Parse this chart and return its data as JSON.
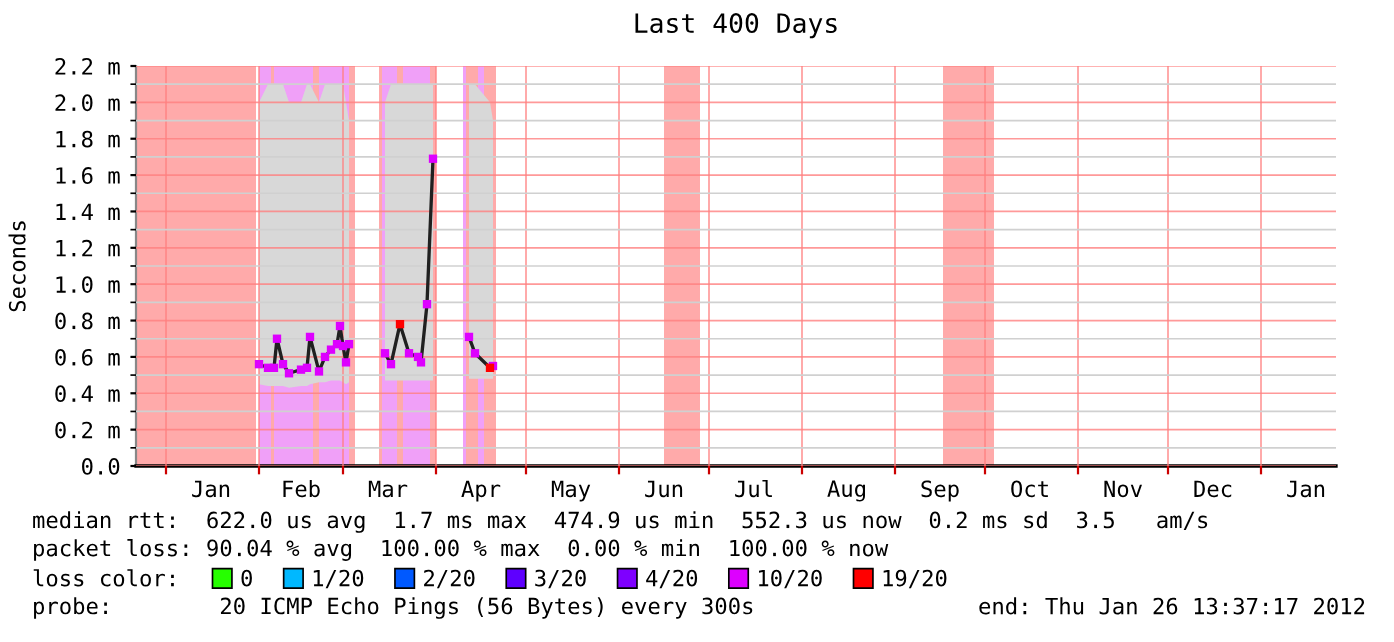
{
  "chart_data": {
    "type": "line",
    "title": "Last 400 Days",
    "ylabel": "Seconds",
    "legend_title": "loss color:",
    "legend": "bottom",
    "grid": true,
    "xlim": [
      "2010-12-22",
      "2012-01-26"
    ],
    "xticks": [
      {
        "value": "2011-01-01",
        "label": null
      },
      {
        "value": "2011-01-16",
        "label": "Jan"
      },
      {
        "value": "2011-02-01",
        "label": null
      },
      {
        "value": "2011-02-15",
        "label": "Feb"
      },
      {
        "value": "2011-03-01",
        "label": null
      },
      {
        "value": "2011-03-16",
        "label": "Mar"
      },
      {
        "value": "2011-04-01",
        "label": null
      },
      {
        "value": "2011-04-16",
        "label": "Apr"
      },
      {
        "value": "2011-05-01",
        "label": null
      },
      {
        "value": "2011-05-16",
        "label": "May"
      },
      {
        "value": "2011-06-01",
        "label": null
      },
      {
        "value": "2011-06-16",
        "label": "Jun"
      },
      {
        "value": "2011-07-01",
        "label": null
      },
      {
        "value": "2011-07-16",
        "label": "Jul"
      },
      {
        "value": "2011-08-01",
        "label": null
      },
      {
        "value": "2011-08-16",
        "label": "Aug"
      },
      {
        "value": "2011-09-01",
        "label": null
      },
      {
        "value": "2011-09-16",
        "label": "Sep"
      },
      {
        "value": "2011-10-01",
        "label": null
      },
      {
        "value": "2011-10-16",
        "label": "Oct"
      },
      {
        "value": "2011-11-01",
        "label": null
      },
      {
        "value": "2011-11-16",
        "label": "Nov"
      },
      {
        "value": "2011-12-01",
        "label": null
      },
      {
        "value": "2011-12-16",
        "label": "Dec"
      },
      {
        "value": "2012-01-01",
        "label": null
      },
      {
        "value": "2012-01-16",
        "label": "Jan"
      }
    ],
    "ylim": [
      0,
      2.2
    ],
    "yticks": [
      {
        "value": 0,
        "label": "0.0"
      },
      {
        "value": 0.1,
        "label": null
      },
      {
        "value": 0.2,
        "label": "0.2 m"
      },
      {
        "value": 0.3,
        "label": null
      },
      {
        "value": 0.4,
        "label": "0.4 m"
      },
      {
        "value": 0.5,
        "label": null
      },
      {
        "value": 0.6,
        "label": "0.6 m"
      },
      {
        "value": 0.7,
        "label": null
      },
      {
        "value": 0.8,
        "label": "0.8 m"
      },
      {
        "value": 0.9,
        "label": null
      },
      {
        "value": 1.0,
        "label": "1.0 m"
      },
      {
        "value": 1.1,
        "label": null
      },
      {
        "value": 1.2,
        "label": "1.2 m"
      },
      {
        "value": 1.3,
        "label": null
      },
      {
        "value": 1.4,
        "label": "1.4 m"
      },
      {
        "value": 1.5,
        "label": null
      },
      {
        "value": 1.6,
        "label": "1.6 m"
      },
      {
        "value": 1.7,
        "label": null
      },
      {
        "value": 1.8,
        "label": "1.8 m"
      },
      {
        "value": 1.9,
        "label": null
      },
      {
        "value": 2.0,
        "label": "2.0 m"
      },
      {
        "value": 2.1,
        "label": null
      },
      {
        "value": 2.2,
        "label": "2.2 m"
      }
    ],
    "x": [
      "2011-02-01",
      "2011-02-04",
      "2011-02-06",
      "2011-02-07",
      "2011-02-09",
      "2011-02-11",
      "2011-02-15",
      "2011-02-17",
      "2011-02-18",
      "2011-02-21",
      "2011-02-23",
      "2011-02-25",
      "2011-02-27",
      "2011-02-28",
      "2011-03-01",
      "2011-03-02",
      "2011-03-03",
      "2011-03-10",
      "2011-03-15",
      "2011-03-17",
      "2011-03-20",
      "2011-03-23",
      "2011-03-26",
      "2011-03-27",
      "2011-03-29",
      "2011-03-31",
      "2011-04-05",
      "2011-04-12",
      "2011-04-14",
      "2011-04-19",
      "2011-04-20"
    ],
    "series": [
      {
        "color": "#202020",
        "values": [
          0.56,
          0.54,
          0.54,
          0.7,
          0.56,
          0.51,
          0.53,
          0.54,
          0.71,
          0.52,
          0.6,
          0.64,
          0.67,
          0.77,
          0.66,
          0.57,
          0.67,
          null,
          0.62,
          0.56,
          0.78,
          0.62,
          0.6,
          0.57,
          0.89,
          1.69,
          null,
          0.71,
          0.62,
          0.54,
          0.55
        ],
        "lower": [
          0.45,
          0.44,
          0.44,
          0.44,
          0.44,
          0.43,
          0.44,
          0.44,
          0.45,
          0.46,
          0.46,
          0.47,
          0.47,
          0.47,
          0.46,
          0.45,
          0.46,
          null,
          0.47,
          0.47,
          0.47,
          0.47,
          0.47,
          0.47,
          0.47,
          0.47,
          null,
          0.48,
          0.48,
          0.48,
          0.48
        ],
        "upper": [
          2.0,
          2.1,
          2.1,
          2.1,
          2.1,
          2.0,
          2.0,
          2.1,
          2.1,
          2.0,
          2.1,
          2.1,
          2.1,
          2.1,
          2.1,
          2.0,
          1.9,
          null,
          2.0,
          2.1,
          2.1,
          2.1,
          2.1,
          2.1,
          2.1,
          2.1,
          null,
          2.1,
          2.1,
          2.0,
          1.9
        ]
      },
      {
        "type": "scatter",
        "marker": "square",
        "name": "0",
        "color": "#26ff00",
        "values": [
          null,
          null,
          null,
          null,
          null,
          null,
          null,
          null,
          null,
          null,
          null,
          null,
          null,
          null,
          null,
          null,
          null,
          null,
          null,
          null,
          null,
          null,
          null,
          null,
          null,
          null,
          null,
          null,
          null,
          null,
          null
        ]
      },
      {
        "type": "scatter",
        "marker": "square",
        "name": "1/20",
        "color": "#00b8ff",
        "values": [
          null,
          null,
          null,
          null,
          null,
          null,
          null,
          null,
          null,
          null,
          null,
          null,
          null,
          null,
          null,
          null,
          null,
          null,
          null,
          null,
          null,
          null,
          null,
          null,
          null,
          null,
          null,
          null,
          null,
          null,
          null
        ]
      },
      {
        "type": "scatter",
        "marker": "square",
        "name": "2/20",
        "color": "#0059ff",
        "values": [
          null,
          null,
          null,
          null,
          null,
          null,
          null,
          null,
          null,
          null,
          null,
          null,
          null,
          null,
          null,
          null,
          null,
          null,
          null,
          null,
          null,
          null,
          null,
          null,
          null,
          null,
          null,
          null,
          null,
          null,
          null
        ]
      },
      {
        "type": "scatter",
        "marker": "square",
        "name": "3/20",
        "color": "#5e00ff",
        "values": [
          null,
          null,
          null,
          null,
          null,
          null,
          null,
          null,
          null,
          null,
          null,
          null,
          null,
          null,
          null,
          null,
          null,
          null,
          null,
          null,
          null,
          null,
          null,
          null,
          null,
          null,
          null,
          null,
          null,
          null,
          null
        ]
      },
      {
        "type": "scatter",
        "marker": "square",
        "name": "4/20",
        "color": "#7e00ff",
        "values": [
          null,
          null,
          null,
          null,
          null,
          null,
          null,
          null,
          null,
          null,
          null,
          null,
          null,
          null,
          null,
          null,
          null,
          null,
          null,
          null,
          null,
          null,
          null,
          null,
          null,
          null,
          null,
          null,
          null,
          null,
          null
        ]
      },
      {
        "type": "scatter",
        "marker": "square",
        "name": "10/20",
        "color": "#dd00ff",
        "values": [
          0.56,
          0.54,
          0.54,
          0.7,
          0.56,
          0.51,
          0.53,
          0.54,
          0.71,
          0.52,
          0.6,
          0.64,
          0.67,
          0.77,
          0.66,
          0.57,
          0.67,
          null,
          0.62,
          0.56,
          null,
          0.62,
          0.6,
          0.57,
          0.89,
          1.69,
          null,
          0.71,
          0.62,
          null,
          0.55
        ]
      },
      {
        "type": "scatter",
        "marker": "square",
        "name": "19/20",
        "color": "#ff0000",
        "values": [
          null,
          null,
          null,
          null,
          null,
          null,
          null,
          null,
          null,
          null,
          null,
          null,
          null,
          null,
          null,
          null,
          null,
          null,
          null,
          null,
          0.78,
          null,
          null,
          null,
          null,
          null,
          null,
          null,
          null,
          0.54,
          null
        ]
      }
    ],
    "bands": [
      {
        "axis": "x",
        "from": "2011-02-01",
        "to": "2011-02-19",
        "color": "#f0a0f8"
      },
      {
        "axis": "x",
        "from": "2011-02-21",
        "to": "2011-03-03",
        "color": "#f0a0f8"
      },
      {
        "axis": "x",
        "from": "2011-03-14",
        "to": "2011-03-19",
        "color": "#f0a0f8"
      },
      {
        "axis": "x",
        "from": "2011-03-21",
        "to": "2011-03-30",
        "color": "#f0a0f8"
      },
      {
        "axis": "x",
        "from": "2011-04-10",
        "to": "2011-04-11",
        "color": "#f0a0f8"
      },
      {
        "axis": "x",
        "from": "2011-04-15",
        "to": "2011-04-17",
        "color": "#f0a0f8"
      },
      {
        "axis": "x",
        "from": "2010-12-22",
        "to": "2011-01-31",
        "color": "#ffaaaa"
      },
      {
        "axis": "x",
        "from": "2011-02-05",
        "to": "2011-02-06",
        "color": "#ffaaaa"
      },
      {
        "axis": "x",
        "from": "2011-02-19",
        "to": "2011-02-21",
        "color": "#ffaaaa"
      },
      {
        "axis": "x",
        "from": "2011-03-03",
        "to": "2011-03-05",
        "color": "#ffaaaa"
      },
      {
        "axis": "x",
        "from": "2011-03-13",
        "to": "2011-03-14",
        "color": "#ffaaaa"
      },
      {
        "axis": "x",
        "from": "2011-03-19",
        "to": "2011-03-21",
        "color": "#ffaaaa"
      },
      {
        "axis": "x",
        "from": "2011-03-30",
        "to": "2011-04-01",
        "color": "#ffaaaa"
      },
      {
        "axis": "x",
        "from": "2011-04-11",
        "to": "2011-04-15",
        "color": "#ffaaaa"
      },
      {
        "axis": "x",
        "from": "2011-04-17",
        "to": "2011-04-21",
        "color": "#ffaaaa"
      },
      {
        "axis": "x",
        "from": "2011-06-16",
        "to": "2011-06-28",
        "color": "#ffaaaa"
      },
      {
        "axis": "x",
        "from": "2011-09-17",
        "to": "2011-10-04",
        "color": "#ffaaaa"
      }
    ],
    "annotations": [
      "median rtt:  622.0 us avg  1.7 ms max  474.9 us min  552.3 us now  0.2 ms sd  3.5   am/s",
      "packet loss: 90.04 % avg  100.00 % max  0.00 % min  100.00 % now",
      "probe:        20 ICMP Echo Pings (56 Bytes) every 300s",
      "end: Thu Jan 26 13:37:17 2012"
    ]
  }
}
